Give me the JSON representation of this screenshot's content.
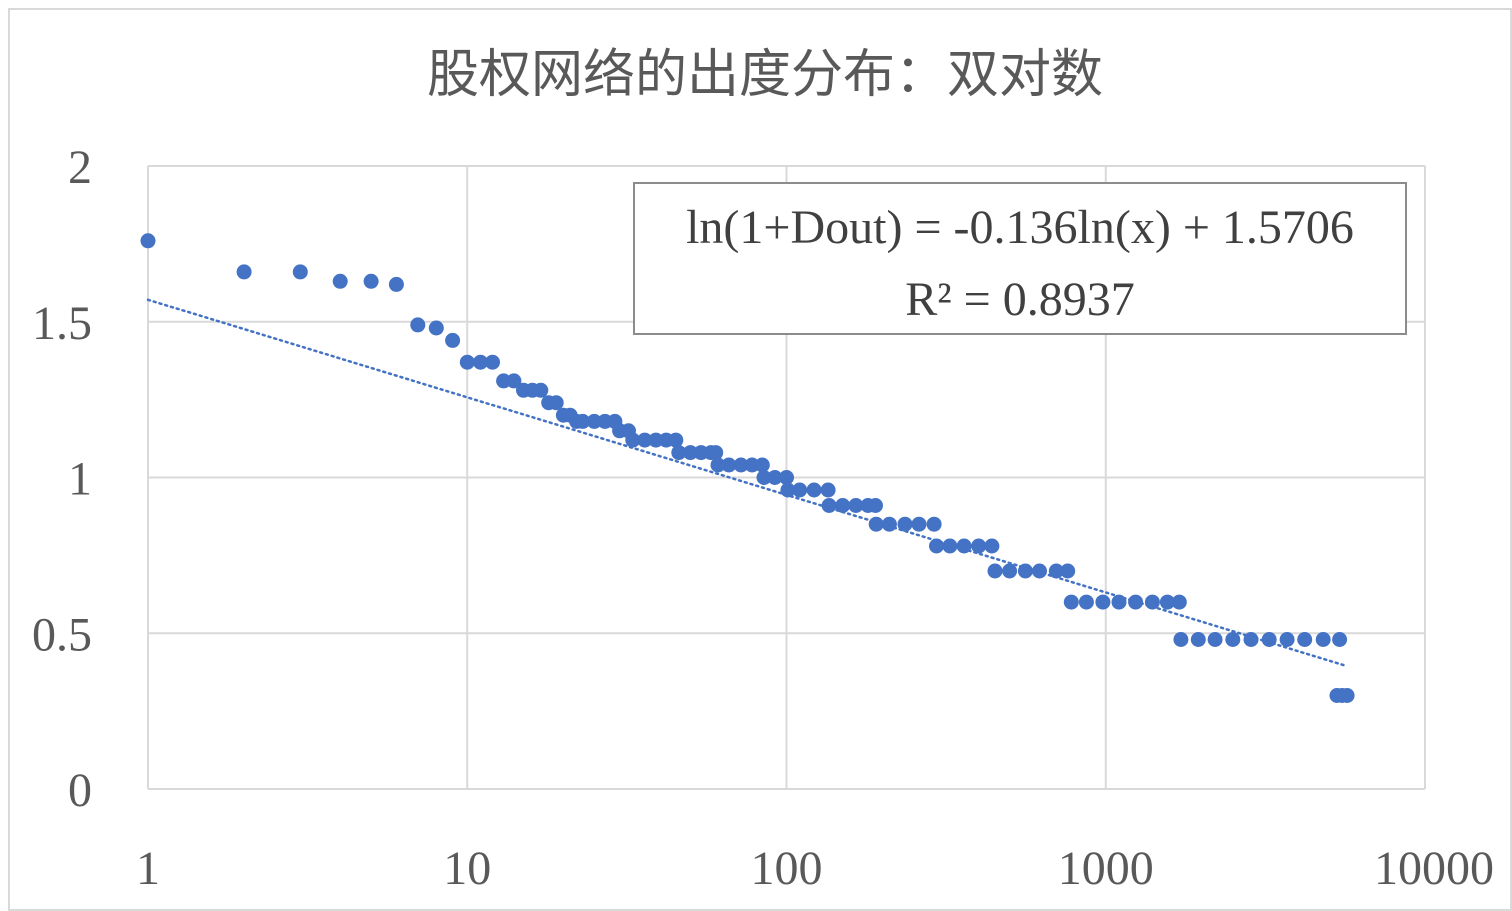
{
  "chart_data": {
    "type": "scatter",
    "title": "股权网络的出度分布：双对数",
    "xlabel": "",
    "ylabel": "",
    "x_scale": "log",
    "xlim": [
      1,
      10000
    ],
    "ylim": [
      0,
      2
    ],
    "x_ticks": [
      1,
      10,
      100,
      1000,
      10000
    ],
    "x_tick_labels": [
      "1",
      "10",
      "100",
      "1000",
      "10000"
    ],
    "y_ticks": [
      0,
      0.5,
      1,
      1.5,
      2
    ],
    "y_tick_labels": [
      "0",
      "0.5",
      "1",
      "1.5",
      "2"
    ],
    "grid": true,
    "legend": "none",
    "colors": {
      "points": "#4472C4",
      "trendline": "#4472C4",
      "grid": "#D9D9D9",
      "text": "#595959"
    },
    "series": [
      {
        "points": [
          [
            1,
            1.76
          ],
          [
            2,
            1.66
          ],
          [
            3,
            1.66
          ],
          [
            4,
            1.63
          ],
          [
            5,
            1.63
          ],
          [
            6,
            1.62
          ],
          [
            7,
            1.49
          ],
          [
            8,
            1.48
          ],
          [
            9,
            1.44
          ],
          [
            10,
            1.37
          ],
          [
            11,
            1.37
          ],
          [
            12,
            1.37
          ],
          [
            13,
            1.31
          ],
          [
            14,
            1.31
          ],
          [
            15,
            1.28
          ],
          [
            16,
            1.28
          ],
          [
            17,
            1.28
          ],
          [
            18,
            1.24
          ],
          [
            19,
            1.24
          ],
          [
            20,
            1.2
          ],
          [
            21,
            1.2
          ],
          [
            22,
            1.18
          ],
          [
            23,
            1.18
          ],
          [
            25,
            1.18
          ],
          [
            27,
            1.18
          ],
          [
            29,
            1.18
          ],
          [
            30,
            1.15
          ],
          [
            32,
            1.15
          ],
          [
            33,
            1.12
          ],
          [
            36,
            1.12
          ],
          [
            39,
            1.12
          ],
          [
            42,
            1.12
          ],
          [
            45,
            1.12
          ],
          [
            46,
            1.08
          ],
          [
            50,
            1.08
          ],
          [
            54,
            1.08
          ],
          [
            58,
            1.08
          ],
          [
            60,
            1.08
          ],
          [
            61,
            1.04
          ],
          [
            66,
            1.04
          ],
          [
            72,
            1.04
          ],
          [
            78,
            1.04
          ],
          [
            84,
            1.04
          ],
          [
            85,
            1.0
          ],
          [
            92,
            1.0
          ],
          [
            100,
            1.0
          ],
          [
            101,
            0.96
          ],
          [
            110,
            0.96
          ],
          [
            122,
            0.96
          ],
          [
            135,
            0.96
          ],
          [
            136,
            0.91
          ],
          [
            150,
            0.91
          ],
          [
            165,
            0.91
          ],
          [
            180,
            0.91
          ],
          [
            190,
            0.91
          ],
          [
            191,
            0.85
          ],
          [
            210,
            0.85
          ],
          [
            235,
            0.85
          ],
          [
            260,
            0.85
          ],
          [
            290,
            0.85
          ],
          [
            295,
            0.78
          ],
          [
            325,
            0.78
          ],
          [
            360,
            0.78
          ],
          [
            400,
            0.78
          ],
          [
            440,
            0.78
          ],
          [
            450,
            0.7
          ],
          [
            500,
            0.7
          ],
          [
            560,
            0.7
          ],
          [
            620,
            0.7
          ],
          [
            700,
            0.7
          ],
          [
            760,
            0.7
          ],
          [
            780,
            0.6
          ],
          [
            870,
            0.6
          ],
          [
            980,
            0.6
          ],
          [
            1100,
            0.6
          ],
          [
            1240,
            0.6
          ],
          [
            1400,
            0.6
          ],
          [
            1560,
            0.6
          ],
          [
            1700,
            0.6
          ],
          [
            1720,
            0.48
          ],
          [
            1950,
            0.48
          ],
          [
            2200,
            0.48
          ],
          [
            2500,
            0.48
          ],
          [
            2850,
            0.48
          ],
          [
            3250,
            0.48
          ],
          [
            3700,
            0.48
          ],
          [
            4200,
            0.48
          ],
          [
            4800,
            0.48
          ],
          [
            5400,
            0.48
          ],
          [
            5300,
            0.3
          ],
          [
            5500,
            0.3
          ],
          [
            5700,
            0.3
          ]
        ]
      }
    ],
    "trendline": {
      "type": "logarithmic",
      "coef": -0.136,
      "intercept": 1.5706,
      "x_range": [
        1,
        5600
      ],
      "equation_label": "ln(1+Dout) = -0.136ln(x) + 1.5706",
      "r2_label": "R² = 0.8937"
    }
  }
}
